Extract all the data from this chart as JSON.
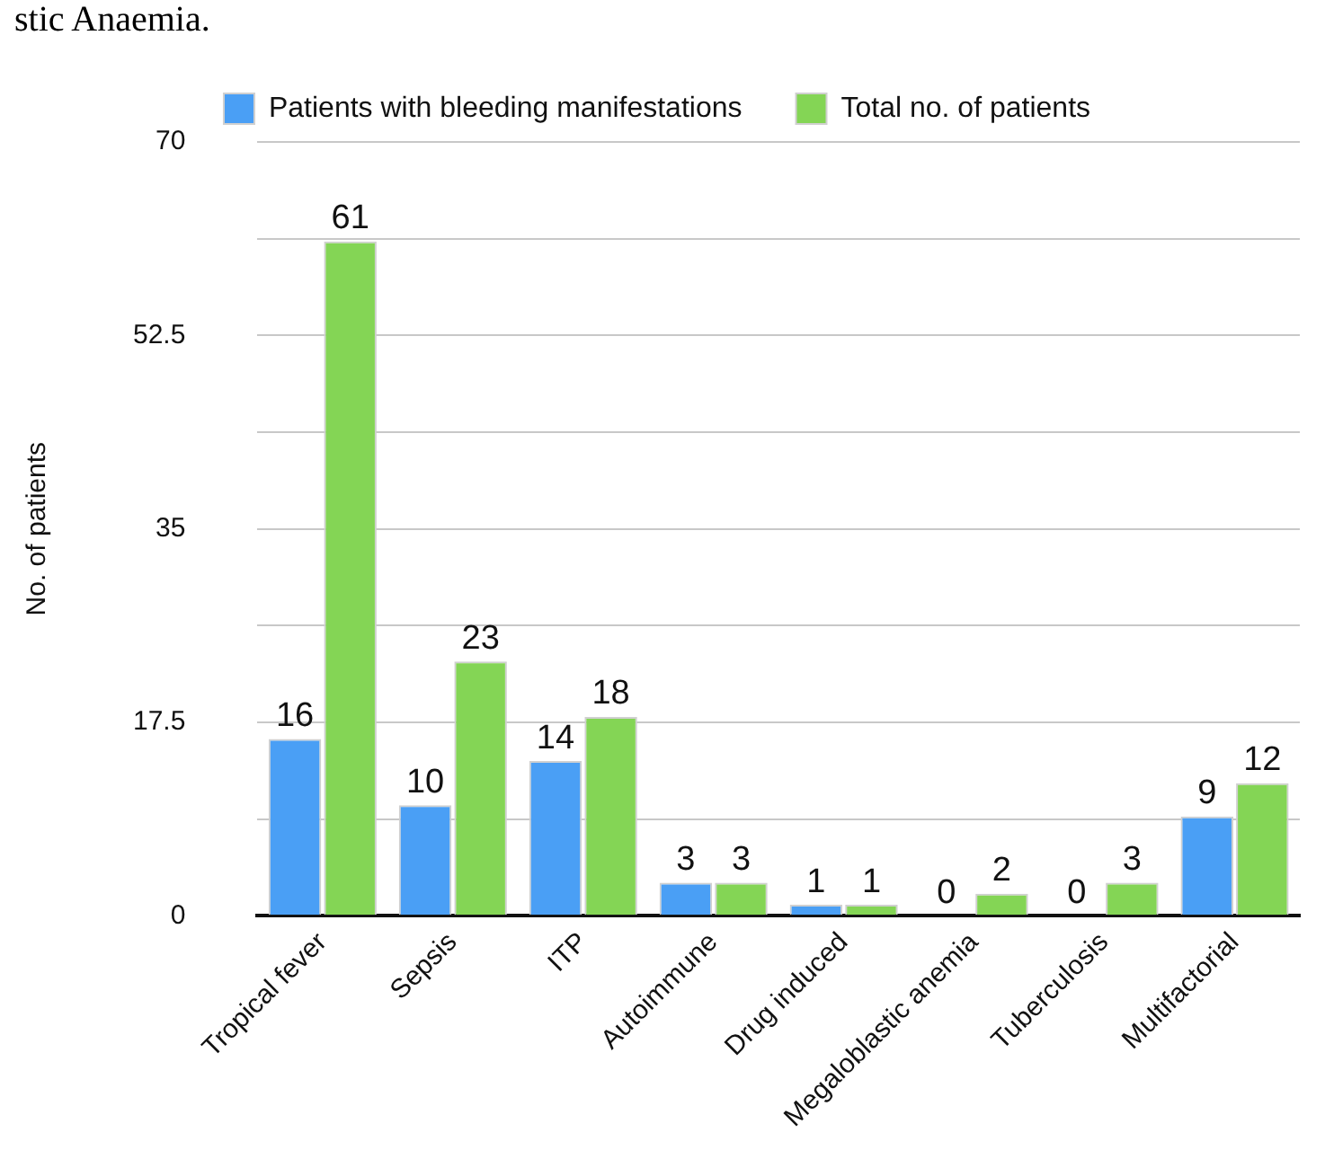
{
  "chart_data": {
    "type": "bar",
    "annotations": [
      "stic Anaemia."
    ],
    "ylabel": "No. of patients",
    "categories": [
      "Tropical fever",
      "Sepsis",
      "ITP",
      "Autoimmune",
      "Drug induced",
      "Megaloblastic anemia",
      "Tuberculosis",
      "Multifactorial"
    ],
    "series": [
      {
        "name": "Patients with bleeding manifestations",
        "color": "#4a9ff5",
        "values": [
          16,
          10,
          14,
          3,
          1,
          0,
          0,
          9
        ]
      },
      {
        "name": "Total no. of patients",
        "color": "#84d555",
        "values": [
          61,
          23,
          18,
          3,
          1,
          2,
          3,
          12
        ]
      }
    ],
    "ylim": [
      0,
      70
    ],
    "yticks": [
      0,
      {
        "value": 8.75,
        "label": null
      },
      17.5,
      {
        "value": 26.25,
        "label": null
      },
      35,
      {
        "value": 43.75,
        "label": null
      },
      52.5,
      {
        "value": 61.25,
        "label": null
      },
      70
    ],
    "grid": "y",
    "legend": "top",
    "data_labels": true
  }
}
